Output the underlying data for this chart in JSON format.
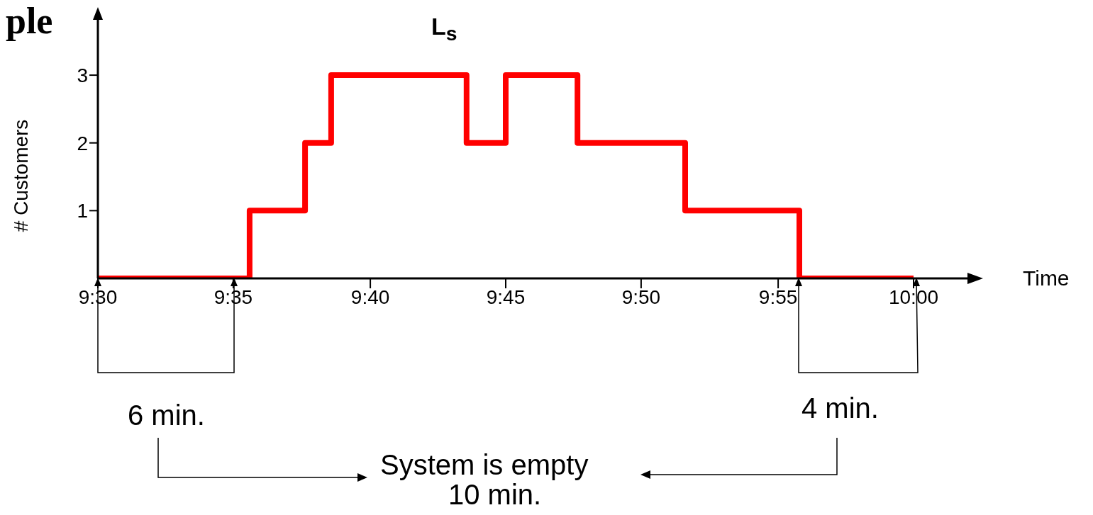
{
  "chart_data": {
    "type": "step",
    "title": "L$_{s}$",
    "xlabel": "Time",
    "ylabel": "# Customers",
    "x": [
      9.5,
      9.593,
      9.627,
      9.643,
      9.726,
      9.75,
      9.794,
      9.86,
      9.93,
      10.0
    ],
    "series": [
      {
        "color": "#ff0000",
        "values": [
          0,
          1,
          2,
          3,
          2,
          3,
          2,
          1,
          0,
          0
        ]
      }
    ],
    "xlim": [
      9.5,
      10.04
    ],
    "xticks": [
      {
        "value": 9.5,
        "label": "9:30"
      },
      {
        "value": 9.583,
        "label": "9:35"
      },
      {
        "value": 9.667,
        "label": "9:40"
      },
      {
        "value": 9.75,
        "label": "9:45"
      },
      {
        "value": 9.833,
        "label": "9:50"
      },
      {
        "value": 9.917,
        "label": "9:55"
      },
      {
        "value": 10.0,
        "label": "10:00"
      }
    ],
    "ylim": [
      0,
      3.9
    ],
    "yticks": [
      1,
      2,
      3
    ],
    "grid": false,
    "annotations": [
      "ple",
      "6 min.",
      "4 min.",
      "System is empty",
      "10 min."
    ]
  }
}
